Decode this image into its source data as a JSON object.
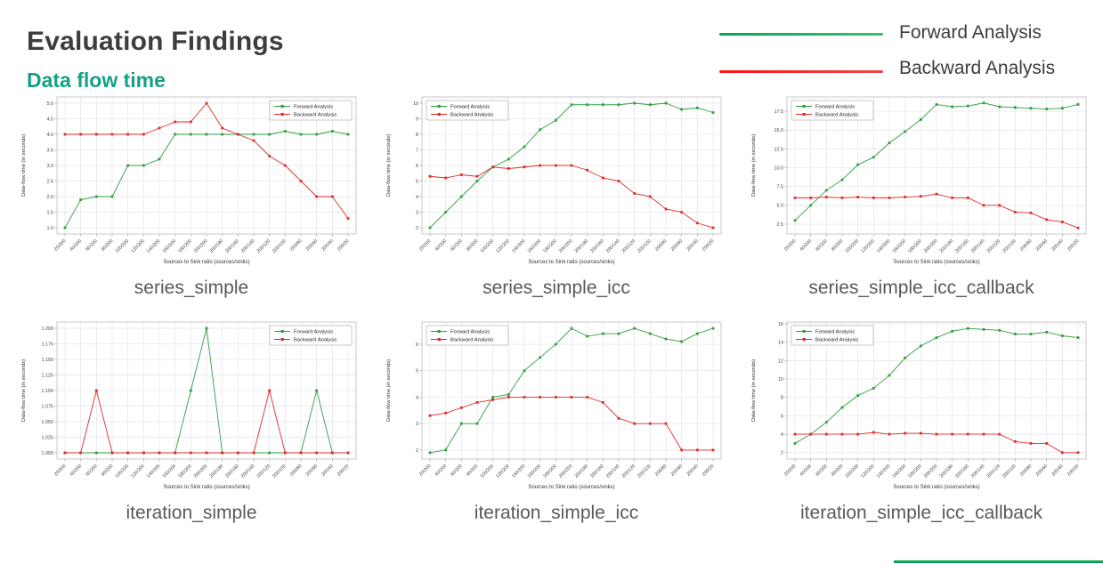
{
  "slide": {
    "title": "Evaluation Findings",
    "subtitle": "Data flow time",
    "legend": {
      "forward_label": "Forward Analysis",
      "backward_label": "Backward Analysis"
    },
    "colors": {
      "forward_green": "#2f9e41",
      "backward_red": "#e02b2b",
      "legend_green": "#00a94f",
      "legend_red": "#ff1111",
      "title_gray": "#3d3d3d",
      "subtitle_teal": "#16a085",
      "caption_gray": "#595959"
    }
  },
  "chart_data": [
    {
      "name": "series_simple",
      "type": "line",
      "xlabel": "Sources to Sink ratio (sources/sinks)",
      "ylabel": "Data-flow time (in seconds)",
      "legend_position": "top-right",
      "grid": true,
      "ylim": [
        0.8,
        5.2
      ],
      "yticks": [
        "1.0",
        "1.5",
        "2.0",
        "2.5",
        "3.0",
        "3.5",
        "4.0",
        "4.5",
        "5.0"
      ],
      "categories": [
        "20/200",
        "40/200",
        "60/200",
        "80/200",
        "100/200",
        "120/200",
        "140/200",
        "160/200",
        "180/200",
        "200/200",
        "200/180",
        "200/160",
        "200/140",
        "200/120",
        "200/100",
        "200/80",
        "200/60",
        "200/40",
        "200/20"
      ],
      "series": [
        {
          "name": "Forward Analysis",
          "color": "#2f9e41",
          "values": [
            1.0,
            1.9,
            2.0,
            2.0,
            3.0,
            3.0,
            3.2,
            4.0,
            4.0,
            4.0,
            4.0,
            4.0,
            4.0,
            4.0,
            4.1,
            4.0,
            4.0,
            4.1,
            4.0
          ]
        },
        {
          "name": "Backward Analysis",
          "color": "#e02b2b",
          "values": [
            4.0,
            4.0,
            4.0,
            4.0,
            4.0,
            4.0,
            4.2,
            4.4,
            4.4,
            5.0,
            4.2,
            4.0,
            3.8,
            3.3,
            3.0,
            2.5,
            2.0,
            2.0,
            1.3
          ]
        }
      ]
    },
    {
      "name": "series_simple_icc",
      "type": "line",
      "xlabel": "Sources to Sink ratio (sources/sinks)",
      "ylabel": "Data-flow time (in seconds)",
      "legend_position": "top-left",
      "grid": true,
      "ylim": [
        1.6,
        10.4
      ],
      "yticks": [
        "2",
        "3",
        "4",
        "5",
        "6",
        "7",
        "8",
        "9",
        "10"
      ],
      "categories": [
        "20/200",
        "40/200",
        "60/200",
        "80/200",
        "100/200",
        "120/200",
        "140/200",
        "160/200",
        "180/200",
        "200/200",
        "200/180",
        "200/160",
        "200/140",
        "200/120",
        "200/100",
        "200/80",
        "200/60",
        "200/40",
        "200/20"
      ],
      "series": [
        {
          "name": "Forward Analysis",
          "color": "#2f9e41",
          "values": [
            2.0,
            3.0,
            4.0,
            5.0,
            5.9,
            6.4,
            7.2,
            8.3,
            8.9,
            9.9,
            9.9,
            9.9,
            9.9,
            10.0,
            9.9,
            10.0,
            9.6,
            9.7,
            9.4
          ]
        },
        {
          "name": "Backward Analysis",
          "color": "#e02b2b",
          "values": [
            5.3,
            5.2,
            5.4,
            5.3,
            5.9,
            5.8,
            5.9,
            6.0,
            6.0,
            6.0,
            5.7,
            5.2,
            5.0,
            4.2,
            4.0,
            3.2,
            3.0,
            2.3,
            2.0
          ]
        }
      ]
    },
    {
      "name": "series_simple_icc_callback",
      "type": "line",
      "xlabel": "Sources to Sink ratio (sources/sinks)",
      "ylabel": "Data-flow time (in seconds)",
      "legend_position": "top-left",
      "grid": true,
      "ylim": [
        1.2,
        19.4
      ],
      "yticks": [
        "2.5",
        "5.0",
        "7.5",
        "10.0",
        "12.5",
        "15.0",
        "17.5"
      ],
      "categories": [
        "20/200",
        "40/200",
        "60/200",
        "80/200",
        "100/200",
        "120/200",
        "140/200",
        "160/200",
        "180/200",
        "200/200",
        "200/180",
        "200/160",
        "200/140",
        "200/120",
        "200/100",
        "200/80",
        "200/60",
        "200/40",
        "200/20"
      ],
      "series": [
        {
          "name": "Forward Analysis",
          "color": "#2f9e41",
          "values": [
            3.0,
            5.0,
            7.0,
            8.4,
            10.4,
            11.4,
            13.3,
            14.8,
            16.4,
            18.4,
            18.1,
            18.2,
            18.6,
            18.1,
            18.0,
            17.9,
            17.8,
            17.9,
            18.4
          ]
        },
        {
          "name": "Backward Analysis",
          "color": "#e02b2b",
          "values": [
            6.0,
            6.0,
            6.1,
            6.0,
            6.1,
            6.0,
            6.0,
            6.1,
            6.2,
            6.5,
            6.0,
            6.0,
            5.0,
            5.0,
            4.1,
            4.0,
            3.1,
            2.8,
            2.0
          ]
        }
      ]
    },
    {
      "name": "iteration_simple",
      "type": "line",
      "xlabel": "Sources to Sink ratio (sources/sinks)",
      "ylabel": "Data-flow time (in seconds)",
      "legend_position": "top-right",
      "grid": true,
      "ylim": [
        0.99,
        1.21
      ],
      "yticks": [
        "1.000",
        "1.025",
        "1.050",
        "1.075",
        "1.100",
        "1.125",
        "1.150",
        "1.175",
        "1.200"
      ],
      "categories": [
        "20/200",
        "40/200",
        "60/200",
        "80/200",
        "100/200",
        "120/200",
        "140/200",
        "160/200",
        "180/200",
        "200/200",
        "200/180",
        "200/160",
        "200/140",
        "200/120",
        "200/100",
        "200/80",
        "200/60",
        "200/40",
        "200/20"
      ],
      "series": [
        {
          "name": "Forward Analysis",
          "color": "#2f9e41",
          "values": [
            1.0,
            1.0,
            1.0,
            1.0,
            1.0,
            1.0,
            1.0,
            1.0,
            1.1,
            1.2,
            1.0,
            1.0,
            1.0,
            1.0,
            1.0,
            1.0,
            1.1,
            1.0,
            1.0
          ]
        },
        {
          "name": "Backward Analysis",
          "color": "#e02b2b",
          "values": [
            1.0,
            1.0,
            1.1,
            1.0,
            1.0,
            1.0,
            1.0,
            1.0,
            1.0,
            1.0,
            1.0,
            1.0,
            1.0,
            1.1,
            1.0,
            1.0,
            1.0,
            1.0,
            1.0
          ]
        }
      ]
    },
    {
      "name": "iteration_simple_icc",
      "type": "line",
      "xlabel": "Sources to Sink ratio (sources/sinks)",
      "ylabel": "Data-flow time (in seconds)",
      "legend_position": "top-left",
      "grid": true,
      "ylim": [
        1.66,
        6.84
      ],
      "yticks": [
        "2",
        "3",
        "4",
        "5",
        "6"
      ],
      "categories": [
        "20/200",
        "40/200",
        "60/200",
        "80/200",
        "100/200",
        "120/200",
        "140/200",
        "160/200",
        "180/200",
        "200/200",
        "200/180",
        "200/160",
        "200/140",
        "200/120",
        "200/100",
        "200/80",
        "200/60",
        "200/40",
        "200/20"
      ],
      "series": [
        {
          "name": "Forward Analysis",
          "color": "#2f9e41",
          "values": [
            1.9,
            2.0,
            3.0,
            3.0,
            4.0,
            4.1,
            5.0,
            5.5,
            6.0,
            6.6,
            6.3,
            6.4,
            6.4,
            6.6,
            6.4,
            6.2,
            6.1,
            6.4,
            6.6
          ]
        },
        {
          "name": "Backward Analysis",
          "color": "#e02b2b",
          "values": [
            3.3,
            3.4,
            3.6,
            3.8,
            3.9,
            4.0,
            4.0,
            4.0,
            4.0,
            4.0,
            4.0,
            3.8,
            3.2,
            3.0,
            3.0,
            3.0,
            2.0,
            2.0,
            2.0
          ]
        }
      ]
    },
    {
      "name": "iteration_simple_icc_callback",
      "type": "line",
      "xlabel": "Sources to Sink ratio (sources/sinks)",
      "ylabel": "Data-flow time (in seconds)",
      "legend_position": "top-left",
      "grid": true,
      "ylim": [
        1.3,
        16.2
      ],
      "yticks": [
        "2",
        "4",
        "6",
        "8",
        "10",
        "12",
        "14",
        "16"
      ],
      "categories": [
        "20/200",
        "40/200",
        "60/200",
        "80/200",
        "100/200",
        "120/200",
        "140/200",
        "160/200",
        "180/200",
        "200/200",
        "200/180",
        "200/160",
        "200/140",
        "200/120",
        "200/100",
        "200/80",
        "200/60",
        "200/40",
        "200/20"
      ],
      "series": [
        {
          "name": "Forward Analysis",
          "color": "#2f9e41",
          "values": [
            3.0,
            4.0,
            5.3,
            6.9,
            8.2,
            9.0,
            10.4,
            12.3,
            13.6,
            14.5,
            15.2,
            15.5,
            15.4,
            15.3,
            14.9,
            14.9,
            15.1,
            14.7,
            14.5
          ]
        },
        {
          "name": "Backward Analysis",
          "color": "#e02b2b",
          "values": [
            4.0,
            4.0,
            4.0,
            4.0,
            4.0,
            4.2,
            4.0,
            4.1,
            4.1,
            4.0,
            4.0,
            4.0,
            4.0,
            4.0,
            3.2,
            3.0,
            3.0,
            2.0,
            2.0
          ]
        }
      ]
    }
  ]
}
